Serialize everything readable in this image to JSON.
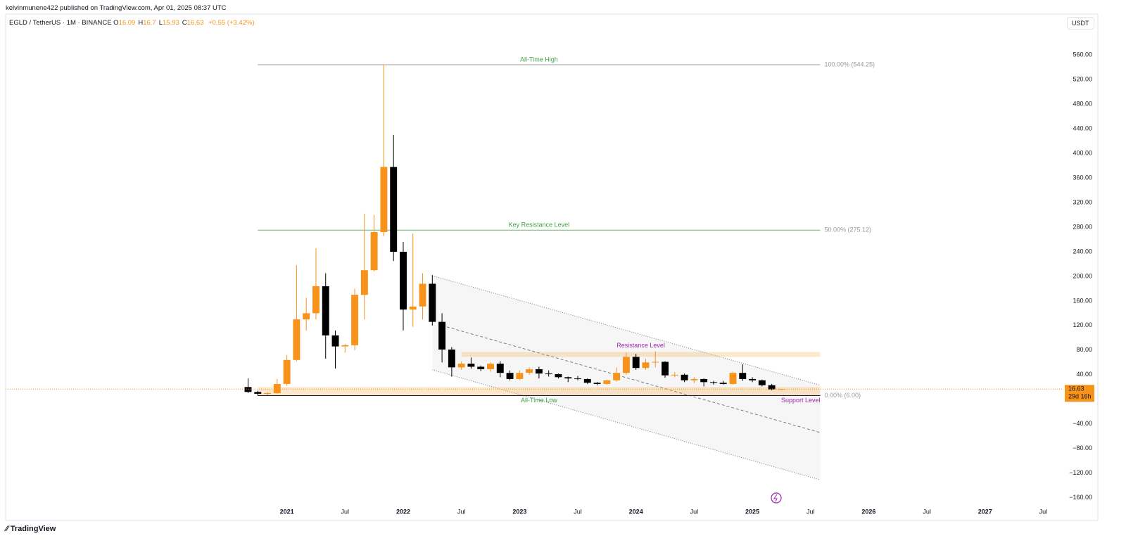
{
  "header": {
    "published": "kelvinmunene422 published on TradingView.com, Apr 01, 2025 08:37 UTC",
    "symbol": "EGLD / TetherUS · 1M · BINANCE",
    "ohlc_keys": [
      "O",
      "H",
      "L",
      "C"
    ],
    "change": "+0.55 (+3.42%)",
    "currency": "USDT",
    "countdown": "29d 16h",
    "brand": "TradingView"
  },
  "chart_data": {
    "type": "candlestick",
    "x": [
      "2020-09",
      "2020-10",
      "2020-11",
      "2020-12",
      "2021-01",
      "2021-02",
      "2021-03",
      "2021-04",
      "2021-05",
      "2021-06",
      "2021-07",
      "2021-08",
      "2021-09",
      "2021-10",
      "2021-11",
      "2021-12",
      "2022-01",
      "2022-02",
      "2022-03",
      "2022-04",
      "2022-05",
      "2022-06",
      "2022-07",
      "2022-08",
      "2022-09",
      "2022-10",
      "2022-11",
      "2022-12",
      "2023-01",
      "2023-02",
      "2023-03",
      "2023-04",
      "2023-05",
      "2023-06",
      "2023-07",
      "2023-08",
      "2023-09",
      "2023-10",
      "2023-11",
      "2023-12",
      "2024-01",
      "2024-02",
      "2024-03",
      "2024-04",
      "2024-05",
      "2024-06",
      "2024-07",
      "2024-08",
      "2024-09",
      "2024-10",
      "2024-11",
      "2024-12",
      "2025-01",
      "2025-02",
      "2025-03",
      "2025-04"
    ],
    "open": [
      20,
      12,
      9,
      10,
      25,
      64,
      130,
      140,
      184,
      104,
      86,
      88,
      170,
      210,
      272,
      378,
      240,
      146,
      151,
      188,
      126,
      81,
      52,
      58,
      53,
      49,
      58,
      43,
      33,
      43,
      49,
      42,
      41,
      36,
      34,
      33,
      27,
      25,
      31,
      43,
      69,
      51,
      60,
      61,
      39,
      40,
      31,
      33,
      28,
      27,
      25,
      43,
      33,
      31,
      23,
      16.09
    ],
    "high": [
      34,
      14,
      12,
      33,
      72,
      218,
      165,
      246,
      205,
      112,
      90,
      180,
      302,
      300,
      544.25,
      430,
      256,
      270,
      205,
      202,
      140,
      85,
      62,
      68,
      55,
      60,
      62,
      47,
      47,
      52,
      53,
      47,
      42,
      37,
      38,
      34,
      28,
      32,
      52,
      76,
      74,
      66,
      78,
      62,
      44,
      42,
      36,
      34,
      30,
      30,
      45,
      57,
      36,
      32,
      25,
      16.7
    ],
    "low": [
      10,
      6,
      7,
      9,
      22,
      62,
      112,
      130,
      66,
      50,
      76,
      80,
      130,
      208,
      265,
      225,
      112,
      118,
      130,
      120,
      60,
      37,
      48,
      50,
      46,
      45,
      36,
      31,
      31,
      40,
      34,
      37,
      34,
      28,
      31,
      25,
      23,
      24,
      29,
      40,
      48,
      48,
      52,
      35,
      36,
      28,
      26,
      21,
      24,
      24,
      24,
      30,
      28,
      21,
      15,
      15.93
    ],
    "close": [
      12,
      9,
      10,
      25,
      64,
      130,
      140,
      184,
      104,
      86,
      88,
      170,
      210,
      272,
      378,
      240,
      146,
      151,
      188,
      126,
      81,
      52,
      58,
      53,
      49,
      58,
      43,
      33,
      43,
      49,
      42,
      41,
      36,
      34,
      33,
      27,
      25,
      31,
      43,
      69,
      51,
      60,
      61,
      39,
      40,
      31,
      33,
      28,
      27,
      25,
      43,
      33,
      31,
      23,
      16.09,
      16.63
    ],
    "up_color": "#f7931a",
    "down_color": "#000000",
    "xlim": [
      "2018-08",
      "2027-09"
    ],
    "xticks": [
      {
        "value": "2021-01",
        "label": "2021"
      },
      {
        "value": "2021-07",
        "label": "Jul"
      },
      {
        "value": "2022-01",
        "label": "2022"
      },
      {
        "value": "2022-07",
        "label": "Jul"
      },
      {
        "value": "2023-01",
        "label": "2023"
      },
      {
        "value": "2023-07",
        "label": "Jul"
      },
      {
        "value": "2024-01",
        "label": "2024"
      },
      {
        "value": "2024-07",
        "label": "Jul"
      },
      {
        "value": "2025-01",
        "label": "2025"
      },
      {
        "value": "2025-07",
        "label": "Jul"
      },
      {
        "value": "2026-01",
        "label": "2026"
      },
      {
        "value": "2026-07",
        "label": "Jul"
      },
      {
        "value": "2027-01",
        "label": "2027"
      },
      {
        "value": "2027-07",
        "label": "Jul"
      }
    ],
    "ylim": [
      -197,
      598
    ],
    "yticks": [
      {
        "value": 560,
        "label": "560.00"
      },
      {
        "value": 520,
        "label": "520.00"
      },
      {
        "value": 480,
        "label": "480.00"
      },
      {
        "value": 440,
        "label": "440.00"
      },
      {
        "value": 400,
        "label": "400.00"
      },
      {
        "value": 360,
        "label": "360.00"
      },
      {
        "value": 320,
        "label": "320.00"
      },
      {
        "value": 280,
        "label": "280.00"
      },
      {
        "value": 240,
        "label": "240.00"
      },
      {
        "value": 200,
        "label": "200.00"
      },
      {
        "value": 160,
        "label": "160.00"
      },
      {
        "value": 120,
        "label": "120.00"
      },
      {
        "value": 80,
        "label": "80.00"
      },
      {
        "value": 40,
        "label": "40.00"
      },
      {
        "value": -40,
        "label": "−40.00"
      },
      {
        "value": -80,
        "label": "−80.00"
      },
      {
        "value": -120,
        "label": "−120.00"
      },
      {
        "value": -160,
        "label": "−160.00"
      }
    ],
    "levels_x": [
      "2020-10",
      "2025-08"
    ],
    "levels": [
      {
        "value": 544.25,
        "text": "All-Time High",
        "label": "100.00% (544.25)",
        "color": "#9e9e9e"
      },
      {
        "value": 275.12,
        "text": "Key Resistance Level",
        "label": "50.00% (275.12)",
        "color": "#66bb6a"
      },
      {
        "value": 6,
        "text": "All-Time Low",
        "label": "0.00% (6.00)",
        "color": "#131722"
      }
    ],
    "zones": [
      {
        "text": "Resistance Level",
        "range": [
          69,
          77
        ],
        "x": [
          "2022-07",
          "2025-08"
        ]
      },
      {
        "text": "Support Level",
        "range": [
          6,
          20
        ],
        "x": [
          "2020-10",
          "2025-08"
        ]
      }
    ],
    "channel": {
      "x": [
        "2022-04",
        "2025-08"
      ],
      "upper": [
        201,
        23
      ],
      "lower": [
        48,
        -131
      ]
    }
  }
}
